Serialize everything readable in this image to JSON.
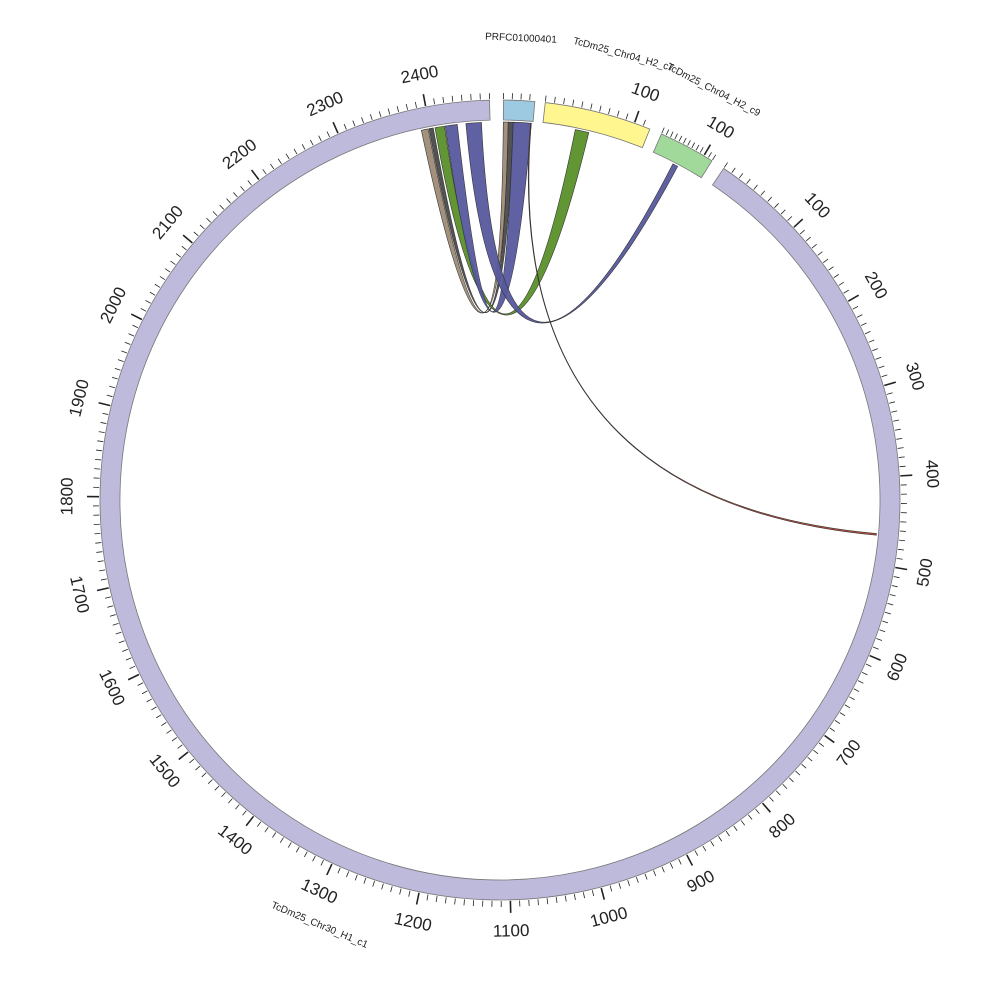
{
  "diagram": {
    "segments": [
      {
        "name": "TcDm25_Chr30_H1_c1",
        "color": "#bdbadb",
        "length": 2470,
        "ticks": [
          {
            "pos": 100,
            "label": "100"
          },
          {
            "pos": 200,
            "label": "200"
          },
          {
            "pos": 300,
            "label": "300"
          },
          {
            "pos": 400,
            "label": "400"
          },
          {
            "pos": 500,
            "label": "500"
          },
          {
            "pos": 600,
            "label": "600"
          },
          {
            "pos": 700,
            "label": "700"
          },
          {
            "pos": 800,
            "label": "800"
          },
          {
            "pos": 900,
            "label": "900"
          },
          {
            "pos": 1000,
            "label": "1000"
          },
          {
            "pos": 1100,
            "label": "1100"
          },
          {
            "pos": 1200,
            "label": "1200"
          },
          {
            "pos": 1300,
            "label": "1300"
          },
          {
            "pos": 1400,
            "label": "1400"
          },
          {
            "pos": 1500,
            "label": "1500"
          },
          {
            "pos": 1600,
            "label": "1600"
          },
          {
            "pos": 1700,
            "label": "1700"
          },
          {
            "pos": 1800,
            "label": "1800"
          },
          {
            "pos": 1900,
            "label": "1900"
          },
          {
            "pos": 2000,
            "label": "2000"
          },
          {
            "pos": 2100,
            "label": "2100"
          },
          {
            "pos": 2200,
            "label": "2200"
          },
          {
            "pos": 2300,
            "label": "2300"
          },
          {
            "pos": 2400,
            "label": "2400"
          }
        ]
      },
      {
        "name": "PRFC01000401",
        "color": "#9ecae1",
        "length": 36,
        "ticks": []
      },
      {
        "name": "TcDm25_Chr04_H2_c7",
        "color": "#fff68f",
        "length": 118,
        "ticks": [
          {
            "pos": 100,
            "label": "100"
          }
        ]
      },
      {
        "name": "TcDm25_Chr04_H2_c9",
        "color": "#a1d99b",
        "length": 120,
        "ticks": [
          {
            "pos": 100,
            "label": "100"
          }
        ]
      }
    ],
    "links": [
      {
        "color": "#9e8a76",
        "a": {
          "seg": 1,
          "start": 0,
          "end": 6
        },
        "b": {
          "seg": 0,
          "start": 2390,
          "end": 2398
        }
      },
      {
        "color": "#4a4a4a",
        "a": {
          "seg": 1,
          "start": 6,
          "end": 12
        },
        "b": {
          "seg": 0,
          "start": 2399,
          "end": 2404
        }
      },
      {
        "color": "#5a8f29",
        "a": {
          "seg": 2,
          "start": 38,
          "end": 54
        },
        "b": {
          "seg": 0,
          "start": 2406,
          "end": 2417
        }
      },
      {
        "color": "#56599e",
        "a": {
          "seg": 1,
          "start": 12,
          "end": 34
        },
        "b": {
          "seg": 0,
          "start": 2418,
          "end": 2432
        }
      },
      {
        "color": "#56599e",
        "a": {
          "seg": 3,
          "start": 50,
          "end": 62
        },
        "b": {
          "seg": 0,
          "start": 2442,
          "end": 2460
        }
      },
      {
        "color": "#b2432f",
        "a": {
          "seg": 1,
          "start": 33,
          "end": 34
        },
        "b": {
          "seg": 0,
          "start": 465,
          "end": 467
        }
      }
    ]
  }
}
